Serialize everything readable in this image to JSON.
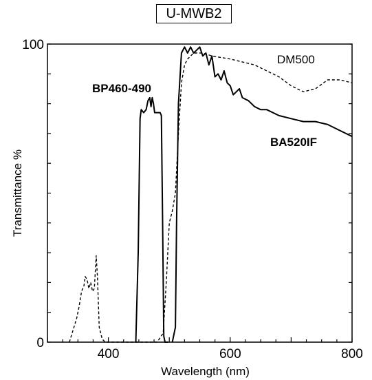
{
  "chart_data": {
    "type": "line",
    "title": "U-MWB2",
    "xlabel": "Wavelength (nm)",
    "ylabel": "Transmittance  %",
    "xlim": [
      300,
      800
    ],
    "ylim": [
      0,
      100
    ],
    "x_tick_labels": [
      "400",
      "600",
      "800"
    ],
    "y_tick_labels": [
      "0",
      "100"
    ],
    "grid": false,
    "series": [
      {
        "name": "BP460-490",
        "style": "solid",
        "x": [
          445,
          449,
          452,
          454,
          458,
          462,
          465,
          468,
          470,
          472,
          474,
          476,
          479,
          482,
          485,
          487,
          489,
          491,
          493,
          498
        ],
        "y": [
          0,
          30,
          75,
          78,
          77,
          78,
          81,
          82,
          79,
          82,
          80,
          77,
          77,
          77,
          77,
          76,
          40,
          2,
          0,
          0
        ]
      },
      {
        "name": "DM500",
        "style": "dashed",
        "x": [
          336,
          342,
          348,
          352,
          356,
          360,
          362,
          365,
          368,
          371,
          374,
          377,
          380,
          382,
          385,
          390,
          395,
          445,
          480,
          490,
          495,
          500,
          505,
          510,
          515,
          520,
          525,
          530,
          540,
          555,
          570,
          600,
          640,
          680,
          700,
          720,
          740,
          760,
          780,
          800
        ],
        "y": [
          0,
          4,
          8,
          12,
          17,
          19,
          22,
          21,
          18,
          20,
          17,
          18,
          29,
          22,
          5,
          1,
          0,
          0,
          0,
          3,
          20,
          40,
          44,
          50,
          70,
          87,
          93,
          95,
          97,
          97,
          96,
          95,
          93,
          89,
          86,
          84,
          85,
          88,
          88,
          87
        ]
      },
      {
        "name": "BA520IF",
        "style": "solid",
        "x": [
          505,
          510,
          512,
          515,
          520,
          525,
          530,
          535,
          540,
          545,
          550,
          555,
          560,
          565,
          570,
          575,
          580,
          585,
          590,
          595,
          600,
          605,
          610,
          615,
          620,
          630,
          640,
          650,
          660,
          680,
          700,
          720,
          740,
          760,
          780,
          800
        ],
        "y": [
          0,
          5,
          40,
          80,
          97,
          99,
          97,
          99,
          97,
          98,
          99,
          96,
          97,
          93,
          96,
          89,
          90,
          88,
          91,
          87,
          86,
          83,
          84,
          85,
          82,
          81,
          79,
          78,
          78,
          76,
          75,
          74,
          74,
          73,
          71,
          69
        ]
      }
    ]
  }
}
